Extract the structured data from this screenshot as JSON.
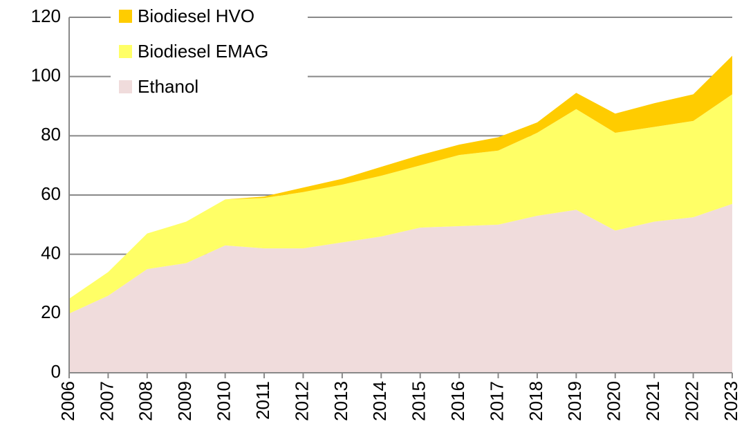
{
  "chart_data": {
    "type": "stacked_area",
    "categories": [
      "2006",
      "2007",
      "2008",
      "2009",
      "2010",
      "2011",
      "2012",
      "2013",
      "2014",
      "2015",
      "2016",
      "2017",
      "2018",
      "2019",
      "2020",
      "2021",
      "2022",
      "2023"
    ],
    "series": [
      {
        "name": "Ethanol",
        "color": "#f0dcdc",
        "values": [
          20,
          26,
          35,
          37,
          43,
          42,
          42,
          44,
          46,
          49,
          49.5,
          50,
          53,
          55,
          48,
          51,
          52.5,
          57
        ]
      },
      {
        "name": "Biodiesel EMAG",
        "color": "#ffff66",
        "values": [
          5,
          8,
          12,
          14,
          15.5,
          17,
          19,
          19.5,
          20.5,
          21,
          24,
          25,
          28,
          34,
          33,
          32,
          32.5,
          37
        ]
      },
      {
        "name": "Biodiesel HVO",
        "color": "#ffcc00",
        "values": [
          0,
          0,
          0,
          0,
          0,
          0.5,
          1.5,
          2,
          3,
          3.5,
          3.5,
          4.5,
          3.5,
          5.5,
          6.5,
          8,
          9,
          13
        ]
      }
    ],
    "ylim": [
      0,
      120
    ],
    "yticks": [
      0,
      20,
      40,
      60,
      80,
      100,
      120
    ],
    "grid": true,
    "legend": "upper left"
  }
}
